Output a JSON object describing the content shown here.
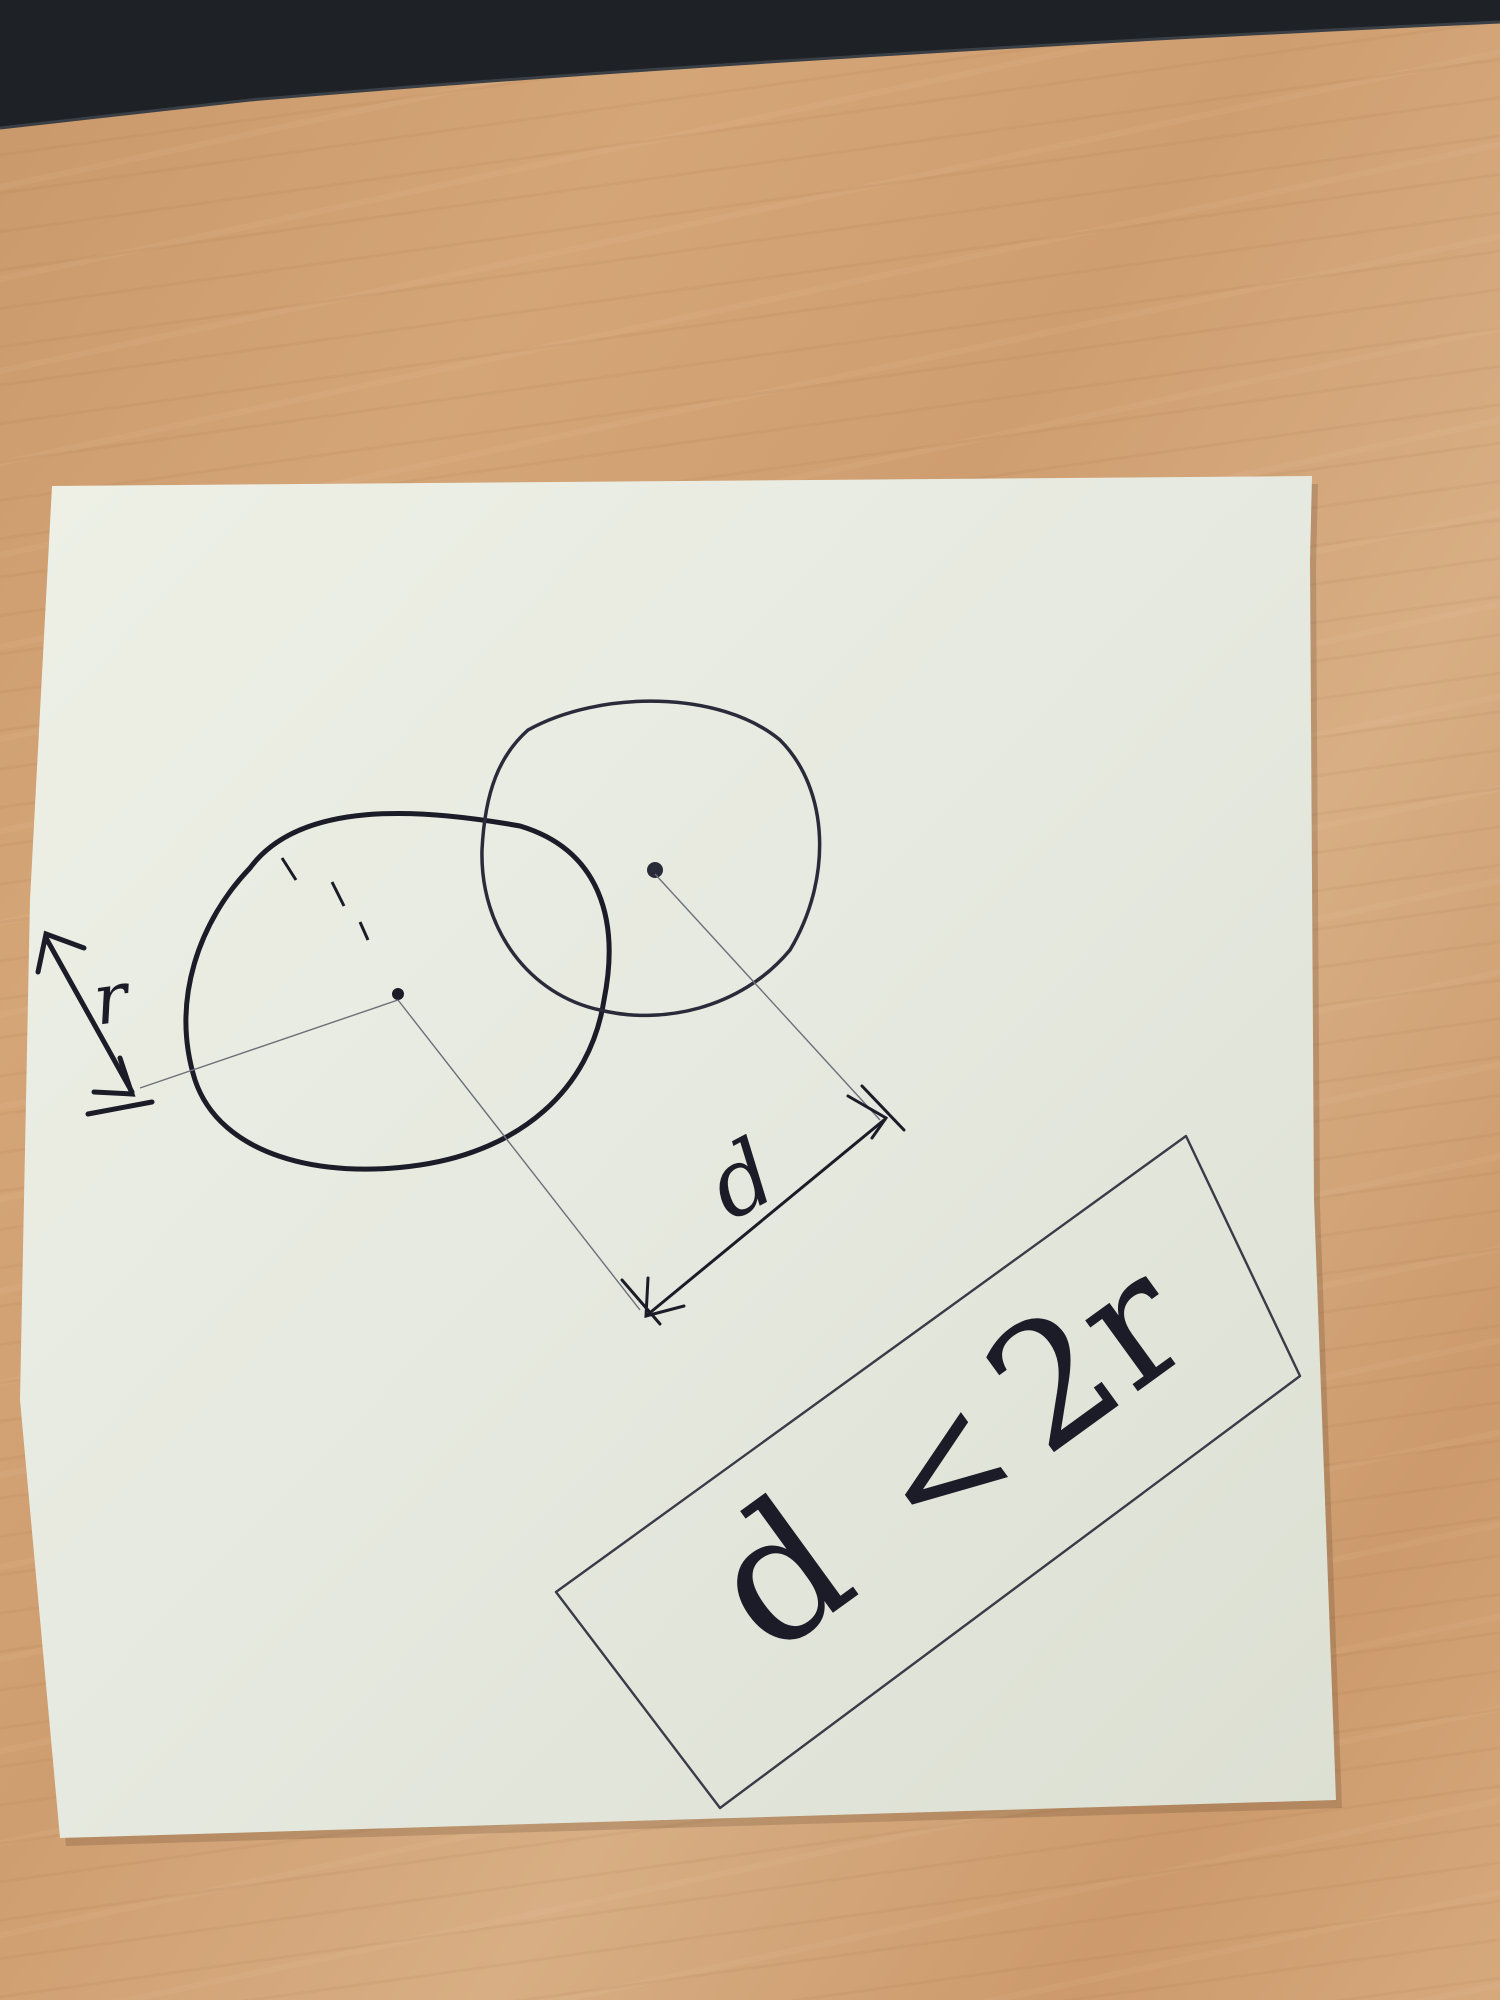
{
  "scene": {
    "description_colors": {
      "desk": "#d4a577",
      "note": "#f0f1e4",
      "ink": "#1c1c28",
      "laptop": "#1e2126"
    }
  },
  "note": {
    "radius_label": "r",
    "distance_label": "d",
    "inequality": {
      "left": "d",
      "operator": "<",
      "right": "2r"
    }
  }
}
